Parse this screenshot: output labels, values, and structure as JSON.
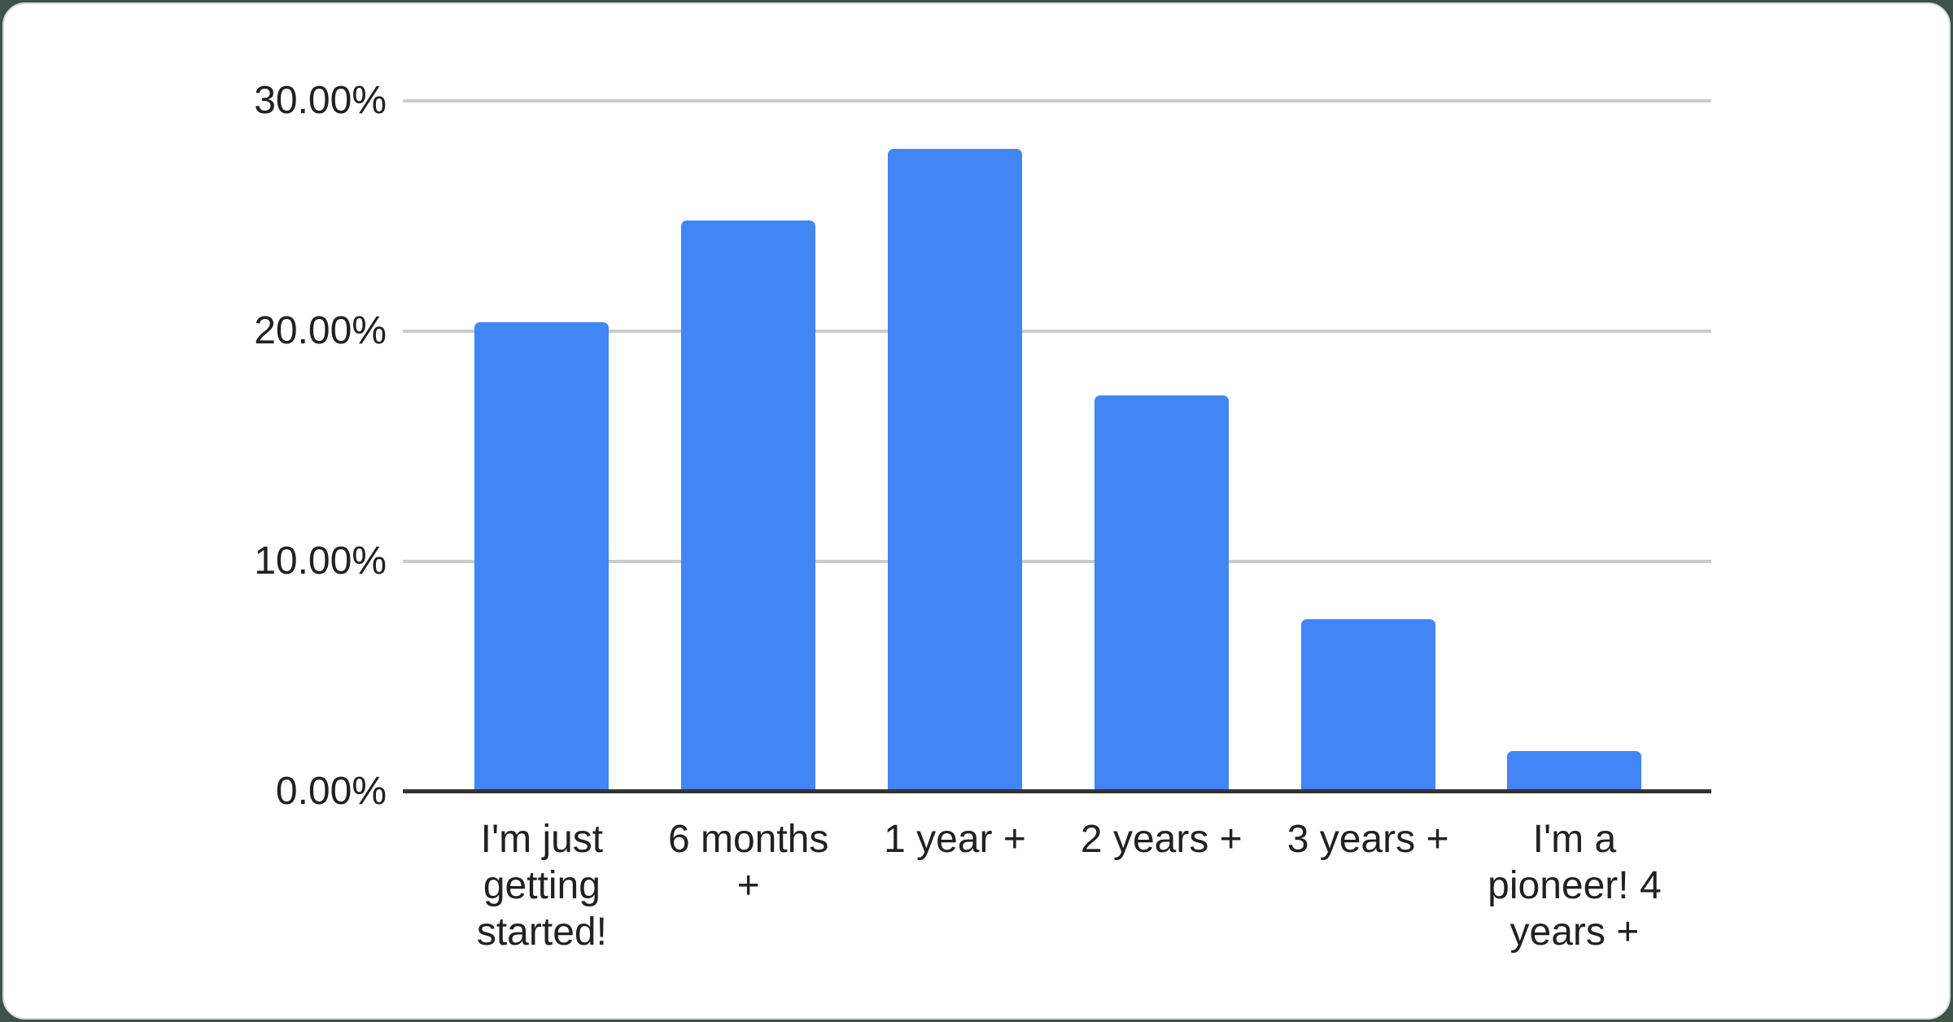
{
  "page": {
    "background_color": "#3f5449",
    "card_background": "#ffffff",
    "card_border_color": "#d8dcde"
  },
  "chart_data": {
    "type": "bar",
    "title": "",
    "xlabel": "",
    "ylabel": "",
    "categories": [
      "I'm just getting started!",
      "6 months +",
      "1 year +",
      "2 years +",
      "3 years +",
      "I'm a pioneer! 4 years +"
    ],
    "values": [
      20.4,
      24.8,
      27.9,
      17.2,
      7.5,
      1.75
    ],
    "ylim": [
      0,
      30
    ],
    "ytick_values": [
      0,
      10,
      20,
      30
    ],
    "ytick_labels": [
      "0.00%",
      "10.00%",
      "20.00%",
      "30.00%"
    ],
    "grid": true,
    "legend_position": "none",
    "bar_color": "#4285f4",
    "gridline_color": "#cccccc",
    "axis_line_color": "#333333",
    "text_color": "#212121"
  }
}
